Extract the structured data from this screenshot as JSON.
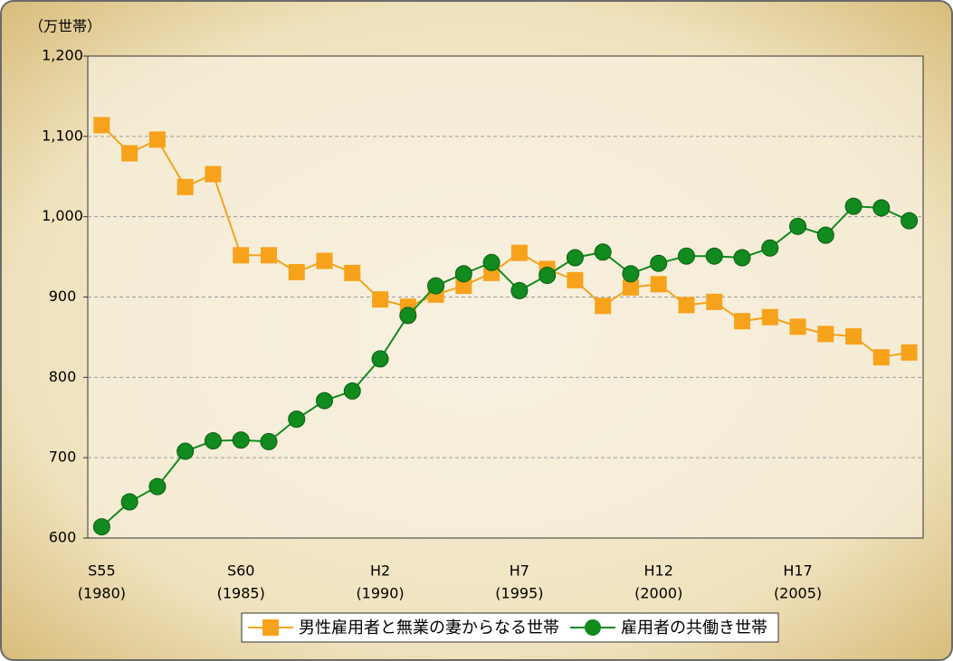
{
  "chart_data": {
    "type": "line",
    "y_unit": "（万世帯）",
    "categories": [
      "S55",
      null,
      null,
      null,
      null,
      "S60",
      null,
      null,
      null,
      null,
      "H2",
      null,
      null,
      null,
      null,
      "H7",
      null,
      null,
      null,
      null,
      "H12",
      null,
      null,
      null,
      null,
      "H17",
      null,
      null,
      null,
      null
    ],
    "category_years": [
      "(1980)",
      null,
      null,
      null,
      null,
      "(1985)",
      null,
      null,
      null,
      null,
      "(1990)",
      null,
      null,
      null,
      null,
      "(1995)",
      null,
      null,
      null,
      null,
      "(2000)",
      null,
      null,
      null,
      null,
      "(2005)",
      null,
      null,
      null,
      null
    ],
    "series": [
      {
        "name": "男性雇用者と無業の妻からなる世帯",
        "color": "#f7a21b",
        "marker": "square",
        "values": [
          1114,
          1079,
          1096,
          1037,
          1053,
          952,
          952,
          931,
          945,
          930,
          897,
          888,
          903,
          914,
          930,
          955,
          935,
          921,
          889,
          912,
          916,
          890,
          894,
          870,
          875,
          863,
          854,
          851,
          825,
          831
        ]
      },
      {
        "name": "雇用者の共働き世帯",
        "color": "#118a1e",
        "marker": "circle",
        "values": [
          614,
          645,
          664,
          708,
          721,
          722,
          720,
          748,
          771,
          783,
          823,
          877,
          914,
          929,
          943,
          908,
          927,
          949,
          956,
          929,
          942,
          951,
          951,
          949,
          961,
          988,
          977,
          1013,
          1011,
          995
        ]
      }
    ],
    "ylim": [
      600,
      1200
    ],
    "yticks": [
      600,
      700,
      800,
      900,
      1000,
      1100,
      {
        "value": 1200,
        "label": "1,200"
      }
    ],
    "ytick_labels": [
      "600",
      "700",
      "800",
      "900",
      "1,000",
      "1,100",
      "1,200"
    ],
    "grid": true,
    "legend": "bottom"
  }
}
